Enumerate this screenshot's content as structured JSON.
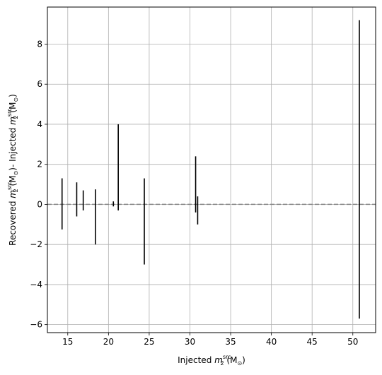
{
  "chart_data": {
    "type": "errorbar",
    "xlabel": {
      "prefix": "Injected ",
      "var": "m",
      "sub": "2",
      "sup": "src",
      "unit": " (M",
      "unit_sub": "⊙",
      "unit_close": ")"
    },
    "ylabel": {
      "part1_prefix": "Recovered ",
      "part2_prefix": "- Injected ",
      "var": "m",
      "sub": "2",
      "sup": "src",
      "unit": " (M",
      "unit_sub": "⊙",
      "unit_close": ")"
    },
    "xlim": [
      12.5,
      52.8
    ],
    "ylim": [
      -6.4,
      9.85
    ],
    "xticks": [
      15,
      20,
      25,
      30,
      35,
      40,
      45,
      50
    ],
    "yticks": [
      -6,
      -4,
      -2,
      0,
      2,
      4,
      6,
      8
    ],
    "grid": true,
    "reference_line": {
      "y": 0,
      "style": "dashed",
      "color": "#888888"
    },
    "bar_color": "#000000",
    "bars": [
      {
        "x": 14.3,
        "low": -1.25,
        "high": 1.3
      },
      {
        "x": 16.1,
        "low": -0.6,
        "high": 1.1
      },
      {
        "x": 16.9,
        "low": -0.3,
        "high": 0.7
      },
      {
        "x": 18.4,
        "low": -2.0,
        "high": 0.75
      },
      {
        "x": 20.6,
        "low": -0.1,
        "high": 0.15
      },
      {
        "x": 21.2,
        "low": -0.3,
        "high": 4.0
      },
      {
        "x": 24.4,
        "low": -3.0,
        "high": 1.3
      },
      {
        "x": 30.7,
        "low": -0.4,
        "high": 2.4
      },
      {
        "x": 30.95,
        "low": -1.0,
        "high": 0.4
      },
      {
        "x": 50.8,
        "low": -5.7,
        "high": 9.2
      }
    ]
  }
}
